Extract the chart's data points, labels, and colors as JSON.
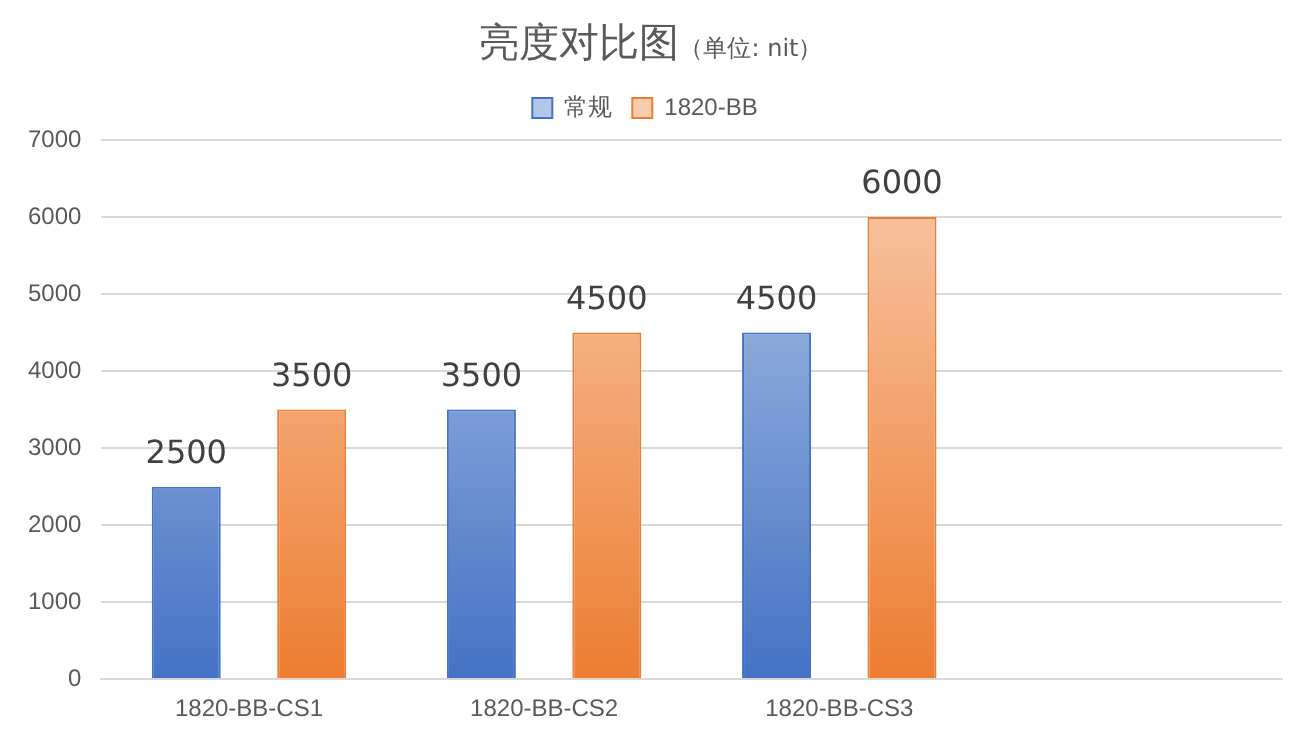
{
  "chart_data": {
    "type": "bar",
    "title": "亮度对比图",
    "subtitle": "（单位: nit）",
    "categories": [
      "1820-BB-CS1",
      "1820-BB-CS2",
      "1820-BB-CS3",
      null
    ],
    "series": [
      {
        "name": "常规",
        "color": "#4472c4",
        "values": [
          2500,
          3500,
          4500,
          null
        ]
      },
      {
        "name": "1820-BB",
        "color": "#ed7d31",
        "values": [
          3500,
          4500,
          6000,
          null
        ]
      }
    ],
    "ylim": [
      0,
      7000
    ],
    "yticks": [
      0,
      1000,
      2000,
      3000,
      4000,
      5000,
      6000,
      7000
    ],
    "grid": "y",
    "legend": "top",
    "data_labels": true
  }
}
